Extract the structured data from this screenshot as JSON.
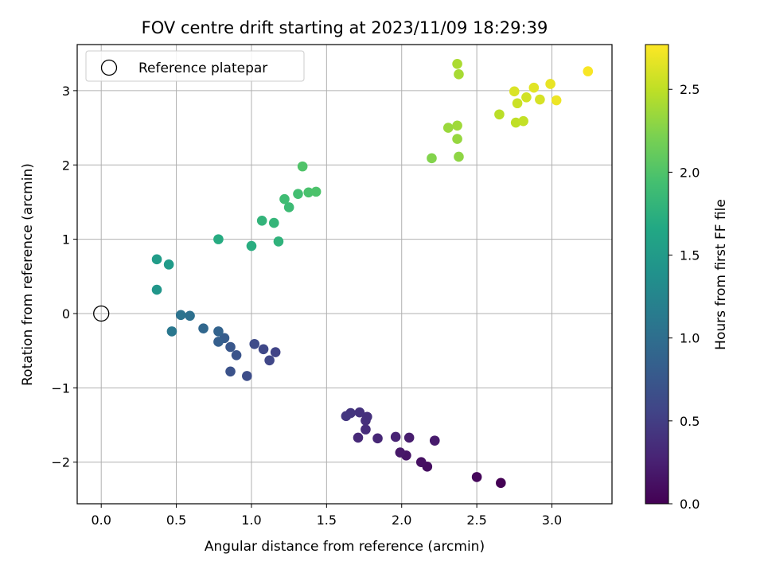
{
  "chart_data": {
    "type": "scatter",
    "title": "FOV centre drift starting at 2023/11/09 18:29:39",
    "xlabel": "Angular distance from reference (arcmin)",
    "ylabel": "Rotation from reference (arcmin)",
    "xlim": [
      -0.16,
      3.4
    ],
    "ylim": [
      -2.56,
      3.62
    ],
    "xticks": [
      0.0,
      0.5,
      1.0,
      1.5,
      2.0,
      2.5,
      3.0
    ],
    "xtick_labels": [
      "0.0",
      "0.5",
      "1.0",
      "1.5",
      "2.0",
      "2.5",
      "3.0"
    ],
    "yticks": [
      -2,
      -1,
      0,
      1,
      2,
      3
    ],
    "ytick_labels": [
      "−2",
      "−1",
      "0",
      "1",
      "2",
      "3"
    ],
    "grid": true,
    "colormap": "viridis",
    "colorbar": {
      "label": "Hours from first FF file",
      "range": [
        0.0,
        2.77
      ],
      "ticks": [
        0.0,
        0.5,
        1.0,
        1.5,
        2.0,
        2.5
      ],
      "tick_labels": [
        "0.0",
        "0.5",
        "1.0",
        "1.5",
        "2.0",
        "2.5"
      ]
    },
    "legend": {
      "entries": [
        "Reference platepar"
      ],
      "position": "top-left"
    },
    "reference_point": {
      "x": 0.0,
      "y": 0.0
    },
    "points": [
      {
        "x": 2.66,
        "y": -2.28,
        "c": 0.0
      },
      {
        "x": 2.5,
        "y": -2.2,
        "c": 0.05
      },
      {
        "x": 2.17,
        "y": -2.06,
        "c": 0.1
      },
      {
        "x": 2.13,
        "y": -2.0,
        "c": 0.12
      },
      {
        "x": 2.03,
        "y": -1.91,
        "c": 0.15
      },
      {
        "x": 1.99,
        "y": -1.87,
        "c": 0.18
      },
      {
        "x": 2.22,
        "y": -1.71,
        "c": 0.2
      },
      {
        "x": 2.05,
        "y": -1.67,
        "c": 0.22
      },
      {
        "x": 1.96,
        "y": -1.66,
        "c": 0.27
      },
      {
        "x": 1.84,
        "y": -1.68,
        "c": 0.3
      },
      {
        "x": 1.71,
        "y": -1.67,
        "c": 0.32
      },
      {
        "x": 1.76,
        "y": -1.56,
        "c": 0.35
      },
      {
        "x": 1.76,
        "y": -1.44,
        "c": 0.37
      },
      {
        "x": 1.77,
        "y": -1.39,
        "c": 0.38
      },
      {
        "x": 1.72,
        "y": -1.33,
        "c": 0.4
      },
      {
        "x": 1.66,
        "y": -1.34,
        "c": 0.42
      },
      {
        "x": 1.63,
        "y": -1.38,
        "c": 0.44
      },
      {
        "x": 1.16,
        "y": -0.52,
        "c": 0.55
      },
      {
        "x": 1.12,
        "y": -0.63,
        "c": 0.58
      },
      {
        "x": 1.08,
        "y": -0.48,
        "c": 0.6
      },
      {
        "x": 1.02,
        "y": -0.41,
        "c": 0.63
      },
      {
        "x": 0.97,
        "y": -0.84,
        "c": 0.65
      },
      {
        "x": 0.86,
        "y": -0.78,
        "c": 0.7
      },
      {
        "x": 0.9,
        "y": -0.56,
        "c": 0.72
      },
      {
        "x": 0.86,
        "y": -0.45,
        "c": 0.75
      },
      {
        "x": 0.82,
        "y": -0.33,
        "c": 0.8
      },
      {
        "x": 0.78,
        "y": -0.38,
        "c": 0.83
      },
      {
        "x": 0.78,
        "y": -0.24,
        "c": 0.88
      },
      {
        "x": 0.68,
        "y": -0.2,
        "c": 0.92
      },
      {
        "x": 0.59,
        "y": -0.03,
        "c": 1.02
      },
      {
        "x": 0.53,
        "y": -0.02,
        "c": 1.05
      },
      {
        "x": 0.47,
        "y": -0.24,
        "c": 1.1
      },
      {
        "x": 0.37,
        "y": 0.32,
        "c": 1.45
      },
      {
        "x": 0.45,
        "y": 0.66,
        "c": 1.5
      },
      {
        "x": 0.37,
        "y": 0.73,
        "c": 1.52
      },
      {
        "x": 0.78,
        "y": 1.0,
        "c": 1.7
      },
      {
        "x": 1.0,
        "y": 0.91,
        "c": 1.72
      },
      {
        "x": 1.18,
        "y": 0.97,
        "c": 1.78
      },
      {
        "x": 1.07,
        "y": 1.25,
        "c": 1.8
      },
      {
        "x": 1.15,
        "y": 1.22,
        "c": 1.82
      },
      {
        "x": 1.25,
        "y": 1.43,
        "c": 1.88
      },
      {
        "x": 1.22,
        "y": 1.54,
        "c": 1.9
      },
      {
        "x": 1.31,
        "y": 1.61,
        "c": 1.93
      },
      {
        "x": 1.38,
        "y": 1.63,
        "c": 1.97
      },
      {
        "x": 1.43,
        "y": 1.64,
        "c": 1.98
      },
      {
        "x": 1.34,
        "y": 1.98,
        "c": 2.0
      },
      {
        "x": 2.2,
        "y": 2.09,
        "c": 2.25
      },
      {
        "x": 2.38,
        "y": 2.11,
        "c": 2.3
      },
      {
        "x": 2.37,
        "y": 2.35,
        "c": 2.33
      },
      {
        "x": 2.31,
        "y": 2.5,
        "c": 2.35
      },
      {
        "x": 2.37,
        "y": 2.53,
        "c": 2.37
      },
      {
        "x": 2.38,
        "y": 3.22,
        "c": 2.4
      },
      {
        "x": 2.37,
        "y": 3.36,
        "c": 2.42
      },
      {
        "x": 2.65,
        "y": 2.68,
        "c": 2.48
      },
      {
        "x": 2.76,
        "y": 2.57,
        "c": 2.5
      },
      {
        "x": 2.81,
        "y": 2.59,
        "c": 2.52
      },
      {
        "x": 2.77,
        "y": 2.83,
        "c": 2.55
      },
      {
        "x": 2.83,
        "y": 2.91,
        "c": 2.58
      },
      {
        "x": 2.92,
        "y": 2.88,
        "c": 2.6
      },
      {
        "x": 2.75,
        "y": 2.99,
        "c": 2.62
      },
      {
        "x": 2.88,
        "y": 3.04,
        "c": 2.65
      },
      {
        "x": 2.99,
        "y": 3.09,
        "c": 2.68
      },
      {
        "x": 3.03,
        "y": 2.87,
        "c": 2.7
      },
      {
        "x": 3.24,
        "y": 3.26,
        "c": 2.75
      }
    ]
  }
}
